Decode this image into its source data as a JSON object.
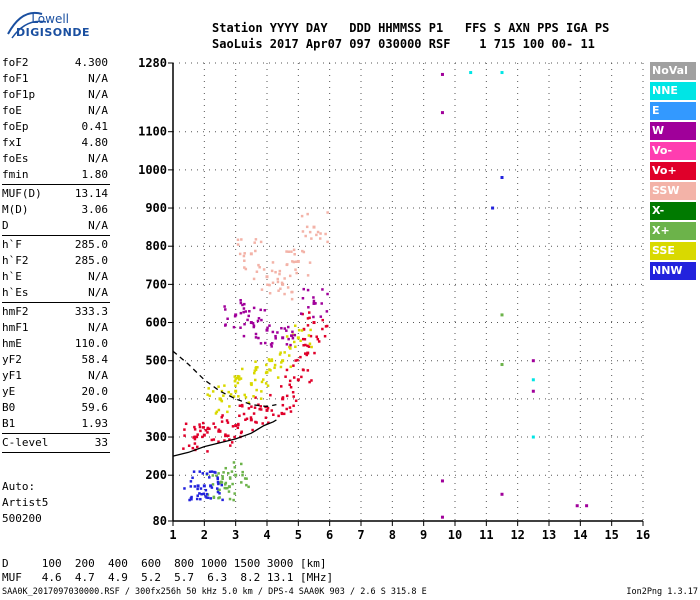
{
  "logo": {
    "line1": "Lowell",
    "line2": "DIGISONDE"
  },
  "header": {
    "row1": "Station YYYY DAY   DDD HHMMSS P1   FFS S AXN PPS IGA PS",
    "row2": "SaoLuis 2017 Apr07 097 030000 RSF    1 715 100 00- 11"
  },
  "params": {
    "group1": [
      {
        "name": "foF2",
        "value": "4.300"
      },
      {
        "name": "foF1",
        "value": "N/A"
      },
      {
        "name": "foF1p",
        "value": "N/A"
      },
      {
        "name": "foE",
        "value": "N/A"
      },
      {
        "name": "foEp",
        "value": "0.41"
      },
      {
        "name": "fxI",
        "value": "4.80"
      },
      {
        "name": "foEs",
        "value": "N/A"
      },
      {
        "name": "fmin",
        "value": "1.80"
      }
    ],
    "group2": [
      {
        "name": "MUF(D)",
        "value": "13.14"
      },
      {
        "name": "M(D)",
        "value": "3.06"
      },
      {
        "name": "D",
        "value": "N/A"
      }
    ],
    "group3": [
      {
        "name": "h`F",
        "value": "285.0"
      },
      {
        "name": "h`F2",
        "value": "285.0"
      },
      {
        "name": "h`E",
        "value": "N/A"
      },
      {
        "name": "h`Es",
        "value": "N/A"
      }
    ],
    "group4": [
      {
        "name": "hmF2",
        "value": "333.3"
      },
      {
        "name": "hmF1",
        "value": "N/A"
      },
      {
        "name": "hmE",
        "value": "110.0"
      },
      {
        "name": "yF2",
        "value": "58.4"
      },
      {
        "name": "yF1",
        "value": "N/A"
      },
      {
        "name": "yE",
        "value": "20.0"
      },
      {
        "name": "B0",
        "value": "59.6"
      },
      {
        "name": "B1",
        "value": "1.93"
      }
    ],
    "group5": [
      {
        "name": "C-level",
        "value": "33"
      }
    ]
  },
  "misc": {
    "line1": "Auto:",
    "line2": "Artist5",
    "line3": "500200"
  },
  "legend": [
    {
      "label": "NoVal",
      "color": "#a0a0a0"
    },
    {
      "label": "NNE",
      "color": "#00e5e5"
    },
    {
      "label": "E",
      "color": "#3399ff"
    },
    {
      "label": "W",
      "color": "#a0009a"
    },
    {
      "label": "Vo-",
      "color": "#ff3db0"
    },
    {
      "label": "Vo+",
      "color": "#e0002a"
    },
    {
      "label": "SSW",
      "color": "#f3b3a8"
    },
    {
      "label": "X-",
      "color": "#007a00"
    },
    {
      "label": "X+",
      "color": "#6cb34a"
    },
    {
      "label": "SSE",
      "color": "#d9d900"
    },
    {
      "label": "NNW",
      "color": "#2222dd"
    }
  ],
  "table": {
    "row1": "D     100  200  400  600  800 1000 1500 3000 [km]",
    "row2": "MUF   4.6  4.7  4.9  5.2  5.7  6.3  8.2 13.1 [MHz]"
  },
  "footer": {
    "left": "SAA0K_2017097030000.RSF / 300fx256h 50 kHz 5.0 km / DPS-4 SAA0K 903 / 2.6 S 315.8 E",
    "right": "Ion2Png 1.3.17"
  },
  "chart_data": {
    "type": "scatter",
    "xlim": [
      1,
      16
    ],
    "ylim": [
      80,
      1280
    ],
    "x_ticks": [
      1,
      2,
      3,
      4,
      5,
      6,
      7,
      8,
      9,
      10,
      11,
      12,
      13,
      14,
      15,
      16
    ],
    "y_ticks": [
      80,
      200,
      300,
      400,
      500,
      600,
      700,
      800,
      900,
      1000,
      1100,
      1280
    ],
    "xlabel": "",
    "ylabel": "",
    "grid": true,
    "legend_position": "right",
    "description_series": [
      {
        "name": "Vo+",
        "color": "#e0002a",
        "points": [
          [
            1.7,
            300
          ],
          [
            2.0,
            305
          ],
          [
            2.5,
            315
          ],
          [
            3.0,
            330
          ],
          [
            3.5,
            345
          ],
          [
            4.0,
            370
          ],
          [
            4.5,
            400
          ],
          [
            5.0,
            450
          ],
          [
            5.3,
            520
          ],
          [
            5.5,
            600
          ]
        ]
      },
      {
        "name": "SSE",
        "color": "#d9d900",
        "points": [
          [
            2.5,
            400
          ],
          [
            3.0,
            420
          ],
          [
            3.5,
            440
          ],
          [
            4.0,
            470
          ],
          [
            4.5,
            500
          ],
          [
            5.0,
            560
          ]
        ]
      },
      {
        "name": "SSW",
        "color": "#f3b3a8",
        "points": [
          [
            3.5,
            780
          ],
          [
            4.0,
            720
          ],
          [
            4.5,
            700
          ],
          [
            5.0,
            760
          ],
          [
            5.5,
            850
          ]
        ]
      },
      {
        "name": "W",
        "color": "#a0009a",
        "points": [
          [
            3.0,
            620
          ],
          [
            3.5,
            600
          ],
          [
            4.0,
            580
          ],
          [
            4.5,
            560
          ],
          [
            5.5,
            650
          ],
          [
            9.6,
            1250
          ],
          [
            9.6,
            1150
          ],
          [
            9.6,
            185
          ],
          [
            9.6,
            90
          ],
          [
            11.5,
            150
          ],
          [
            12.5,
            500
          ],
          [
            12.5,
            420
          ],
          [
            13.9,
            120
          ],
          [
            14.2,
            120
          ]
        ]
      },
      {
        "name": "NNE",
        "color": "#00e5e5",
        "points": [
          [
            10.5,
            1255
          ],
          [
            11.5,
            1255
          ],
          [
            12.5,
            450
          ],
          [
            12.5,
            300
          ]
        ]
      },
      {
        "name": "X+",
        "color": "#6cb34a",
        "points": [
          [
            2.5,
            180
          ],
          [
            2.8,
            170
          ],
          [
            3.0,
            200
          ],
          [
            11.5,
            490
          ],
          [
            11.5,
            620
          ]
        ]
      },
      {
        "name": "NNW",
        "color": "#2222dd",
        "points": [
          [
            1.8,
            172
          ],
          [
            2.0,
            172
          ],
          [
            2.2,
            172
          ],
          [
            11.5,
            980
          ],
          [
            11.2,
            900
          ]
        ]
      }
    ],
    "profile_lines": [
      {
        "style": "solid",
        "points": [
          [
            1.0,
            250
          ],
          [
            1.5,
            260
          ],
          [
            2.0,
            275
          ],
          [
            2.5,
            285
          ],
          [
            3.0,
            295
          ],
          [
            3.5,
            310
          ],
          [
            3.9,
            330
          ],
          [
            4.2,
            340
          ],
          [
            4.3,
            345
          ]
        ]
      },
      {
        "style": "dashed",
        "points": [
          [
            1.0,
            525
          ],
          [
            1.5,
            490
          ],
          [
            2.0,
            450
          ],
          [
            2.5,
            420
          ],
          [
            3.0,
            400
          ],
          [
            3.5,
            385
          ],
          [
            4.0,
            380
          ],
          [
            4.3,
            385
          ]
        ]
      }
    ]
  }
}
